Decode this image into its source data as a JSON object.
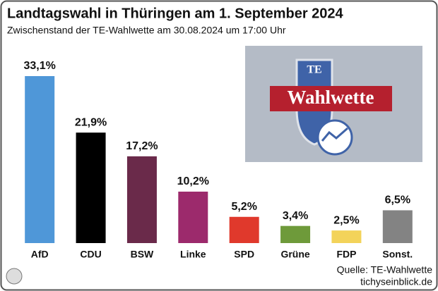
{
  "chart_data": {
    "type": "bar",
    "title": "Landtagswahl in Thüringen am 1. September 2024",
    "subtitle": "Zwischenstand der TE-Wahlwette am 30.08.2024 um 17:00 Uhr",
    "categories": [
      "AfD",
      "CDU",
      "BSW",
      "Linke",
      "SPD",
      "Grüne",
      "FDP",
      "Sonst."
    ],
    "values": [
      33.1,
      21.9,
      17.2,
      10.2,
      5.2,
      3.4,
      2.5,
      6.5
    ],
    "value_labels": [
      "33,1%",
      "21,9%",
      "17,2%",
      "10,2%",
      "5,2%",
      "3,4%",
      "2,5%",
      "6,5%"
    ],
    "colors": [
      "#4f97d8",
      "#000000",
      "#6a2a4a",
      "#9c2a6c",
      "#e0392c",
      "#6e9a3a",
      "#f3d35a",
      "#838383"
    ],
    "source": "Quelle: TE-Wahlwette",
    "site": "tichyseinblick.de"
  },
  "image": {
    "mark": "TE",
    "label": "Wahlwette"
  }
}
